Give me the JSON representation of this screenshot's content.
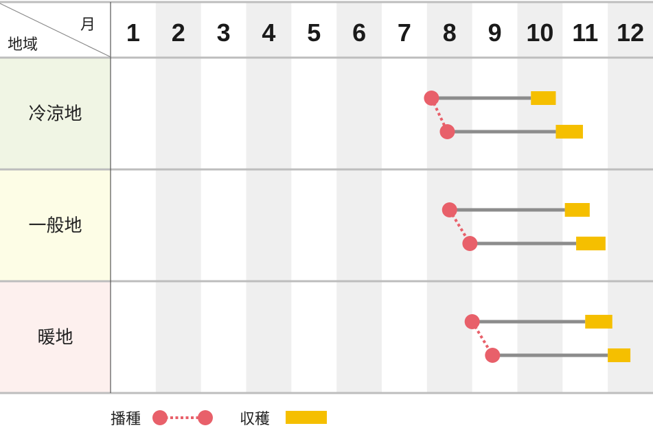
{
  "header": {
    "month_label": "月",
    "region_label": "地域"
  },
  "months": [
    "1",
    "2",
    "3",
    "4",
    "5",
    "6",
    "7",
    "8",
    "9",
    "10",
    "11",
    "12"
  ],
  "colors": {
    "sowing": "#E8606A",
    "harvest": "#F5BF00",
    "bar": "#8C8C8C",
    "grid_line": "#BDBDBD",
    "band_alt": "#EFEFEF",
    "region_bg": [
      "#F0F5E4",
      "#FDFDE6",
      "#FDF0EE"
    ]
  },
  "legend": {
    "sowing_label": "播種",
    "harvest_label": "収穫"
  },
  "chart_data": {
    "type": "gantt",
    "x_unit": "month",
    "xlim": [
      1,
      13
    ],
    "rows": [
      {
        "region": "冷涼地",
        "schedules": [
          {
            "sow": 8.1,
            "harvest_start": 10.3,
            "harvest_end": 10.85
          },
          {
            "sow": 8.45,
            "harvest_start": 10.85,
            "harvest_end": 11.45
          }
        ]
      },
      {
        "region": "一般地",
        "schedules": [
          {
            "sow": 8.5,
            "harvest_start": 11.05,
            "harvest_end": 11.6
          },
          {
            "sow": 8.95,
            "harvest_start": 11.3,
            "harvest_end": 11.95
          }
        ]
      },
      {
        "region": "暖地",
        "schedules": [
          {
            "sow": 9.0,
            "harvest_start": 11.5,
            "harvest_end": 12.1
          },
          {
            "sow": 9.45,
            "harvest_start": 12.0,
            "harvest_end": 12.5
          }
        ]
      }
    ]
  }
}
